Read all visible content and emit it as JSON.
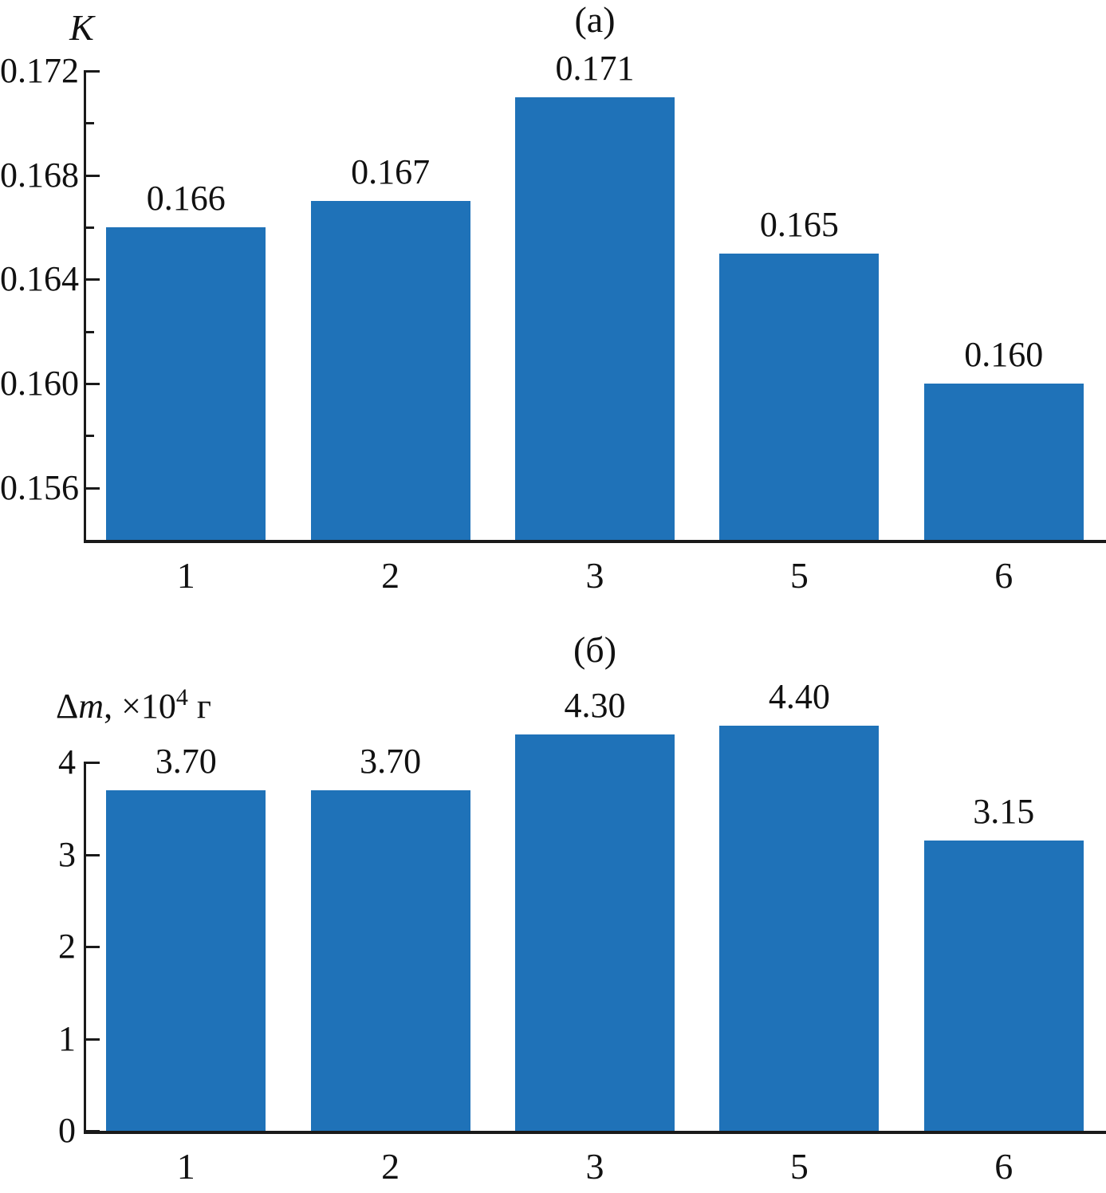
{
  "figure": {
    "background": "#ffffff",
    "bar_color": "#1F72B8",
    "axis_color": "#1A1A1A",
    "text_color": "#111111"
  },
  "chart_data": [
    {
      "type": "bar",
      "panel_label": "(а)",
      "ylabel": "K",
      "xlabel": "",
      "categories": [
        "1",
        "2",
        "3",
        "5",
        "6"
      ],
      "values": [
        0.166,
        0.167,
        0.171,
        0.165,
        0.16
      ],
      "value_labels": [
        "0.166",
        "0.167",
        "0.171",
        "0.165",
        "0.160"
      ],
      "ymin": 0.154,
      "ymax": 0.172,
      "yticks": [
        {
          "value": 0.172,
          "label": "0.172"
        },
        {
          "value": 0.168,
          "label": "0.168"
        },
        {
          "value": 0.164,
          "label": "0.164"
        },
        {
          "value": 0.16,
          "label": "0.160"
        },
        {
          "value": 0.156,
          "label": "0.156"
        }
      ],
      "minor_yticks": [
        0.17,
        0.166,
        0.162,
        0.158
      ],
      "grid": false,
      "legend_position": "none"
    },
    {
      "type": "bar",
      "panel_label": "(б)",
      "ylabel": "Δm, ×10⁴ г",
      "ylabel_parts": {
        "delta": "Δ",
        "symbol": "m",
        "mid": ", ×10",
        "sup": "4",
        "suffix": " г"
      },
      "xlabel": "",
      "categories": [
        "1",
        "2",
        "3",
        "5",
        "6"
      ],
      "values": [
        3.7,
        3.7,
        4.3,
        4.4,
        3.15
      ],
      "value_labels": [
        "3.70",
        "3.70",
        "4.30",
        "4.40",
        "3.15"
      ],
      "ymin": 0,
      "ymax": 4,
      "yticks": [
        {
          "value": 4,
          "label": "4"
        },
        {
          "value": 3,
          "label": "3"
        },
        {
          "value": 2,
          "label": "2"
        },
        {
          "value": 1,
          "label": "1"
        },
        {
          "value": 0,
          "label": "0"
        }
      ],
      "minor_yticks": [],
      "grid": false,
      "legend_position": "none"
    }
  ]
}
